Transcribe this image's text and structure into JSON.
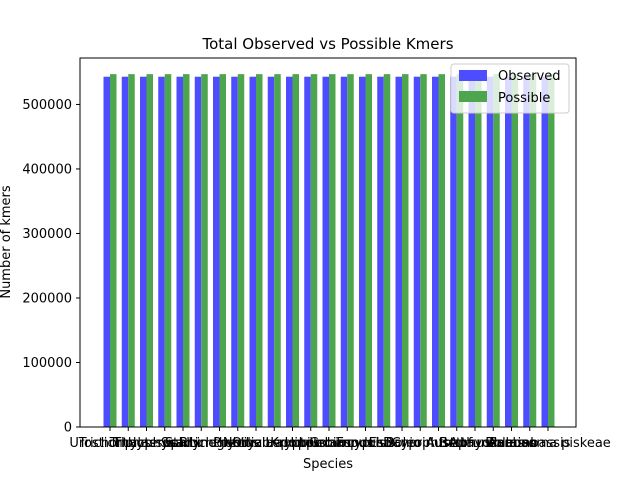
{
  "chart_data": {
    "type": "bar",
    "title": "Total Observed vs Possible Kmers",
    "xlabel": "Species",
    "ylabel": "Number of kmers",
    "ylim": [
      0,
      572000
    ],
    "yticks": [
      0,
      100000,
      200000,
      300000,
      400000,
      500000
    ],
    "yticklabels": [
      "0",
      "100000",
      "200000",
      "300000",
      "400000",
      "500000"
    ],
    "grid": false,
    "legend_position": "top-right",
    "categories": [
      "Urostichthys",
      "Trichomycterus",
      "Triplophysa",
      "Thalassophryne",
      "Stalix",
      "Scartichthys",
      "Rhinogobius",
      "Poecilia",
      "Oryzias",
      "Nothobranchius",
      "Lepomis",
      "Kryptolebias",
      "Hippocampus",
      "Gobiocypris",
      "Fundulus",
      "Esox",
      "Danio",
      "Cyprinus",
      "Boleophthalmus",
      "Betta",
      "Austrofundulus",
      "Aphyosemion",
      "Anabas",
      "Parambassis",
      "Boleosoma piskeae"
    ],
    "series": [
      {
        "name": "Observed",
        "color": "#4d4dff",
        "values": [
          543000,
          543000,
          543000,
          543000,
          543000,
          543000,
          543000,
          543000,
          543000,
          543000,
          543000,
          543000,
          543000,
          543000,
          543000,
          543000,
          543000,
          543000,
          543000,
          543000,
          543000,
          543000,
          543000,
          543000,
          543000
        ]
      },
      {
        "name": "Possible",
        "color": "#4da64d",
        "values": [
          547000,
          547000,
          547000,
          547000,
          547000,
          547000,
          547000,
          547000,
          547000,
          547000,
          547000,
          547000,
          547000,
          547000,
          547000,
          547000,
          547000,
          547000,
          547000,
          547000,
          547000,
          547000,
          547000,
          547000,
          547000
        ]
      }
    ]
  }
}
